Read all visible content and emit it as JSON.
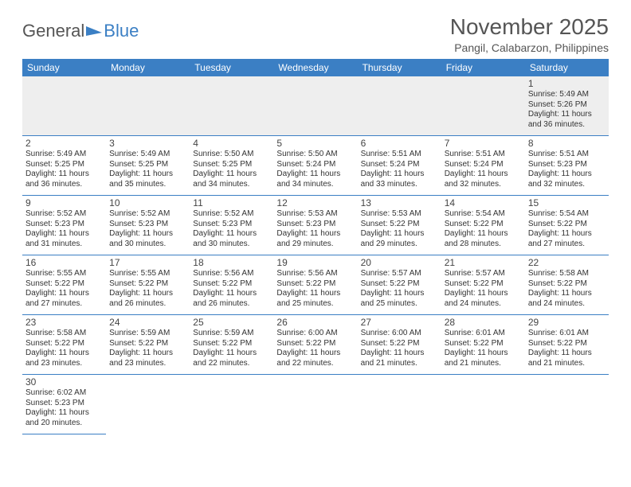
{
  "logo": {
    "text1": "General",
    "text2": "Blue"
  },
  "title": "November 2025",
  "location": "Pangil, Calabarzon, Philippines",
  "colors": {
    "header_bg": "#3b7fc4",
    "header_text": "#ffffff",
    "row_divider": "#3b7fc4",
    "first_row_bg": "#eeeeee",
    "body_text": "#333333",
    "title_text": "#555555"
  },
  "layout": {
    "columns": 7,
    "rows": 6,
    "first_day_column_index": 6,
    "days_in_month": 30
  },
  "day_headers": [
    "Sunday",
    "Monday",
    "Tuesday",
    "Wednesday",
    "Thursday",
    "Friday",
    "Saturday"
  ],
  "days": [
    {
      "n": 1,
      "sunrise": "5:49 AM",
      "sunset": "5:26 PM",
      "daylight": "11 hours and 36 minutes."
    },
    {
      "n": 2,
      "sunrise": "5:49 AM",
      "sunset": "5:25 PM",
      "daylight": "11 hours and 36 minutes."
    },
    {
      "n": 3,
      "sunrise": "5:49 AM",
      "sunset": "5:25 PM",
      "daylight": "11 hours and 35 minutes."
    },
    {
      "n": 4,
      "sunrise": "5:50 AM",
      "sunset": "5:25 PM",
      "daylight": "11 hours and 34 minutes."
    },
    {
      "n": 5,
      "sunrise": "5:50 AM",
      "sunset": "5:24 PM",
      "daylight": "11 hours and 34 minutes."
    },
    {
      "n": 6,
      "sunrise": "5:51 AM",
      "sunset": "5:24 PM",
      "daylight": "11 hours and 33 minutes."
    },
    {
      "n": 7,
      "sunrise": "5:51 AM",
      "sunset": "5:24 PM",
      "daylight": "11 hours and 32 minutes."
    },
    {
      "n": 8,
      "sunrise": "5:51 AM",
      "sunset": "5:23 PM",
      "daylight": "11 hours and 32 minutes."
    },
    {
      "n": 9,
      "sunrise": "5:52 AM",
      "sunset": "5:23 PM",
      "daylight": "11 hours and 31 minutes."
    },
    {
      "n": 10,
      "sunrise": "5:52 AM",
      "sunset": "5:23 PM",
      "daylight": "11 hours and 30 minutes."
    },
    {
      "n": 11,
      "sunrise": "5:52 AM",
      "sunset": "5:23 PM",
      "daylight": "11 hours and 30 minutes."
    },
    {
      "n": 12,
      "sunrise": "5:53 AM",
      "sunset": "5:23 PM",
      "daylight": "11 hours and 29 minutes."
    },
    {
      "n": 13,
      "sunrise": "5:53 AM",
      "sunset": "5:22 PM",
      "daylight": "11 hours and 29 minutes."
    },
    {
      "n": 14,
      "sunrise": "5:54 AM",
      "sunset": "5:22 PM",
      "daylight": "11 hours and 28 minutes."
    },
    {
      "n": 15,
      "sunrise": "5:54 AM",
      "sunset": "5:22 PM",
      "daylight": "11 hours and 27 minutes."
    },
    {
      "n": 16,
      "sunrise": "5:55 AM",
      "sunset": "5:22 PM",
      "daylight": "11 hours and 27 minutes."
    },
    {
      "n": 17,
      "sunrise": "5:55 AM",
      "sunset": "5:22 PM",
      "daylight": "11 hours and 26 minutes."
    },
    {
      "n": 18,
      "sunrise": "5:56 AM",
      "sunset": "5:22 PM",
      "daylight": "11 hours and 26 minutes."
    },
    {
      "n": 19,
      "sunrise": "5:56 AM",
      "sunset": "5:22 PM",
      "daylight": "11 hours and 25 minutes."
    },
    {
      "n": 20,
      "sunrise": "5:57 AM",
      "sunset": "5:22 PM",
      "daylight": "11 hours and 25 minutes."
    },
    {
      "n": 21,
      "sunrise": "5:57 AM",
      "sunset": "5:22 PM",
      "daylight": "11 hours and 24 minutes."
    },
    {
      "n": 22,
      "sunrise": "5:58 AM",
      "sunset": "5:22 PM",
      "daylight": "11 hours and 24 minutes."
    },
    {
      "n": 23,
      "sunrise": "5:58 AM",
      "sunset": "5:22 PM",
      "daylight": "11 hours and 23 minutes."
    },
    {
      "n": 24,
      "sunrise": "5:59 AM",
      "sunset": "5:22 PM",
      "daylight": "11 hours and 23 minutes."
    },
    {
      "n": 25,
      "sunrise": "5:59 AM",
      "sunset": "5:22 PM",
      "daylight": "11 hours and 22 minutes."
    },
    {
      "n": 26,
      "sunrise": "6:00 AM",
      "sunset": "5:22 PM",
      "daylight": "11 hours and 22 minutes."
    },
    {
      "n": 27,
      "sunrise": "6:00 AM",
      "sunset": "5:22 PM",
      "daylight": "11 hours and 21 minutes."
    },
    {
      "n": 28,
      "sunrise": "6:01 AM",
      "sunset": "5:22 PM",
      "daylight": "11 hours and 21 minutes."
    },
    {
      "n": 29,
      "sunrise": "6:01 AM",
      "sunset": "5:22 PM",
      "daylight": "11 hours and 21 minutes."
    },
    {
      "n": 30,
      "sunrise": "6:02 AM",
      "sunset": "5:23 PM",
      "daylight": "11 hours and 20 minutes."
    }
  ],
  "labels": {
    "sunrise": "Sunrise: ",
    "sunset": "Sunset: ",
    "daylight": "Daylight: "
  }
}
